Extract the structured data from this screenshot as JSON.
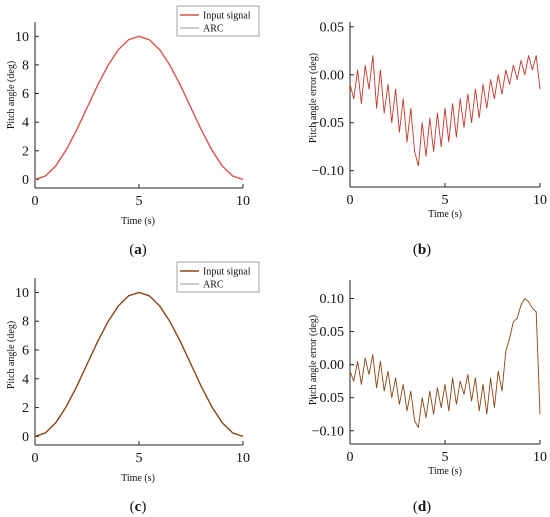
{
  "chart_data": [
    {
      "id": "a",
      "panel_label": "a",
      "type": "line",
      "xlabel": "Time (s)",
      "ylabel": "Pitch angle (deg)",
      "xlim": [
        0,
        10
      ],
      "ylim": [
        -0.6,
        11
      ],
      "xticks": [
        0,
        5,
        10
      ],
      "yticks": [
        0,
        2,
        4,
        6,
        8,
        10
      ],
      "xtick_labels": [
        "0",
        "5",
        "10"
      ],
      "ytick_labels": [
        "0",
        "2",
        "4",
        "6",
        "8",
        "10"
      ],
      "legend": {
        "position": "top-right",
        "entries": [
          "Input signal",
          "ARC"
        ]
      },
      "series": [
        {
          "name": "Input signal",
          "color": "#d9534f",
          "width": 1.4,
          "x": [
            0,
            0.5,
            1,
            1.5,
            2,
            2.5,
            3,
            3.5,
            4,
            4.5,
            5,
            5.5,
            6,
            6.5,
            7,
            7.5,
            8,
            8.5,
            9,
            9.5,
            10
          ],
          "y": [
            0,
            0.24,
            0.95,
            2.06,
            3.45,
            5,
            6.55,
            7.94,
            9.05,
            9.76,
            10,
            9.76,
            9.05,
            7.94,
            6.55,
            5,
            3.45,
            2.06,
            0.95,
            0.24,
            0
          ]
        },
        {
          "name": "ARC",
          "color": "#9a9a9a",
          "width": 0.9,
          "x": [
            0,
            0.5,
            1,
            1.5,
            2,
            2.5,
            3,
            3.5,
            4,
            4.5,
            5,
            5.5,
            6,
            6.5,
            7,
            7.5,
            8,
            8.5,
            9,
            9.5,
            10
          ],
          "y": [
            0,
            0.24,
            0.95,
            2.06,
            3.45,
            5,
            6.55,
            7.94,
            9.05,
            9.76,
            10,
            9.76,
            9.05,
            7.94,
            6.55,
            5,
            3.45,
            2.06,
            0.95,
            0.24,
            0
          ]
        }
      ]
    },
    {
      "id": "b",
      "panel_label": "b",
      "type": "line",
      "xlabel": "Time (s)",
      "ylabel": "Pitch angle error (deg)",
      "xlim": [
        0,
        10
      ],
      "ylim": [
        -0.117,
        0.055
      ],
      "xticks": [
        0,
        5,
        10
      ],
      "yticks": [
        -0.1,
        -0.05,
        0,
        0.05
      ],
      "xtick_labels": [
        "0",
        "5",
        "10"
      ],
      "ytick_labels": [
        "−0.10",
        "−0.05",
        "0.00",
        "0.05"
      ],
      "series": [
        {
          "name": "",
          "color": "#c0392b",
          "width": 0.9,
          "x": [
            0,
            0.2,
            0.4,
            0.6,
            0.8,
            1,
            1.2,
            1.4,
            1.6,
            1.8,
            2,
            2.2,
            2.4,
            2.6,
            2.8,
            3,
            3.2,
            3.4,
            3.6,
            3.8,
            4,
            4.2,
            4.4,
            4.6,
            4.8,
            5,
            5.2,
            5.4,
            5.6,
            5.8,
            6,
            6.2,
            6.4,
            6.6,
            6.8,
            7,
            7.2,
            7.4,
            7.6,
            7.8,
            8,
            8.2,
            8.4,
            8.6,
            8.8,
            9,
            9.2,
            9.4,
            9.6,
            9.8,
            10
          ],
          "y": [
            -0.01,
            -0.025,
            0.005,
            -0.03,
            0.01,
            -0.015,
            0.02,
            -0.035,
            0.005,
            -0.04,
            -0.01,
            -0.05,
            -0.015,
            -0.06,
            -0.025,
            -0.07,
            -0.035,
            -0.08,
            -0.095,
            -0.05,
            -0.085,
            -0.045,
            -0.08,
            -0.04,
            -0.075,
            -0.035,
            -0.07,
            -0.03,
            -0.065,
            -0.025,
            -0.055,
            -0.02,
            -0.05,
            -0.015,
            -0.045,
            -0.01,
            -0.035,
            -0.005,
            -0.025,
            0,
            -0.02,
            0.005,
            -0.01,
            0.01,
            -0.005,
            0.015,
            0,
            0.02,
            0.005,
            0.02,
            -0.015
          ]
        }
      ]
    },
    {
      "id": "c",
      "panel_label": "c",
      "type": "line",
      "xlabel": "Time (s)",
      "ylabel": "Pitch angle (deg)",
      "xlim": [
        0,
        10
      ],
      "ylim": [
        -0.6,
        11
      ],
      "xticks": [
        0,
        5,
        10
      ],
      "yticks": [
        0,
        2,
        4,
        6,
        8,
        10
      ],
      "xtick_labels": [
        "0",
        "5",
        "10"
      ],
      "ytick_labels": [
        "0",
        "2",
        "4",
        "6",
        "8",
        "10"
      ],
      "legend": {
        "position": "top-right",
        "entries": [
          "Input signal",
          "ARC"
        ]
      },
      "series": [
        {
          "name": "Input signal",
          "color": "#8b4513",
          "width": 1.4,
          "x": [
            0,
            0.5,
            1,
            1.5,
            2,
            2.5,
            3,
            3.5,
            4,
            4.5,
            5,
            5.5,
            6,
            6.5,
            7,
            7.5,
            8,
            8.5,
            9,
            9.5,
            10
          ],
          "y": [
            0,
            0.24,
            0.95,
            2.06,
            3.45,
            5,
            6.55,
            7.94,
            9.05,
            9.76,
            10,
            9.76,
            9.05,
            7.94,
            6.55,
            5,
            3.45,
            2.06,
            0.95,
            0.24,
            0
          ]
        },
        {
          "name": "ARC",
          "color": "#9a9a9a",
          "width": 0.9,
          "x": [
            0,
            0.5,
            1,
            1.5,
            2,
            2.5,
            3,
            3.5,
            4,
            4.5,
            5,
            5.5,
            6,
            6.5,
            7,
            7.5,
            8,
            8.5,
            9,
            9.5,
            10
          ],
          "y": [
            0,
            0.24,
            0.95,
            2.06,
            3.45,
            5,
            6.55,
            7.94,
            9.05,
            9.76,
            10,
            9.76,
            9.05,
            7.94,
            6.55,
            5,
            3.45,
            2.06,
            0.95,
            0.24,
            0
          ]
        }
      ]
    },
    {
      "id": "d",
      "panel_label": "d",
      "type": "line",
      "xlabel": "Time (s)",
      "ylabel": "Pitch angle error (deg)",
      "xlim": [
        0,
        10
      ],
      "ylim": [
        -0.12,
        0.128
      ],
      "xticks": [
        0,
        5,
        10
      ],
      "yticks": [
        -0.1,
        -0.05,
        0,
        0.05,
        0.1
      ],
      "xtick_labels": [
        "0",
        "5",
        "10"
      ],
      "ytick_labels": [
        "−0.10",
        "−0.05",
        "0.00",
        "0.05",
        "0.10"
      ],
      "series": [
        {
          "name": "",
          "color": "#8b4513",
          "width": 0.9,
          "x": [
            0,
            0.2,
            0.4,
            0.6,
            0.8,
            1,
            1.2,
            1.4,
            1.6,
            1.8,
            2,
            2.2,
            2.4,
            2.6,
            2.8,
            3,
            3.2,
            3.4,
            3.6,
            3.8,
            4,
            4.2,
            4.4,
            4.6,
            4.8,
            5,
            5.2,
            5.4,
            5.6,
            5.8,
            6,
            6.2,
            6.4,
            6.6,
            6.8,
            7,
            7.2,
            7.4,
            7.6,
            7.8,
            8,
            8.2,
            8.4,
            8.6,
            8.8,
            9,
            9.2,
            9.4,
            9.6,
            9.8,
            10
          ],
          "y": [
            -0.01,
            -0.025,
            0.005,
            -0.03,
            0.01,
            -0.015,
            0.015,
            -0.035,
            0.005,
            -0.04,
            -0.01,
            -0.05,
            -0.02,
            -0.06,
            -0.03,
            -0.07,
            -0.04,
            -0.085,
            -0.095,
            -0.05,
            -0.08,
            -0.04,
            -0.075,
            -0.035,
            -0.065,
            -0.03,
            -0.07,
            -0.02,
            -0.06,
            -0.025,
            -0.045,
            -0.015,
            -0.055,
            -0.02,
            -0.07,
            -0.03,
            -0.075,
            -0.02,
            -0.065,
            -0.01,
            -0.04,
            0.02,
            0.04,
            0.065,
            0.07,
            0.09,
            0.1,
            0.095,
            0.085,
            0.08,
            -0.075
          ]
        }
      ]
    }
  ]
}
